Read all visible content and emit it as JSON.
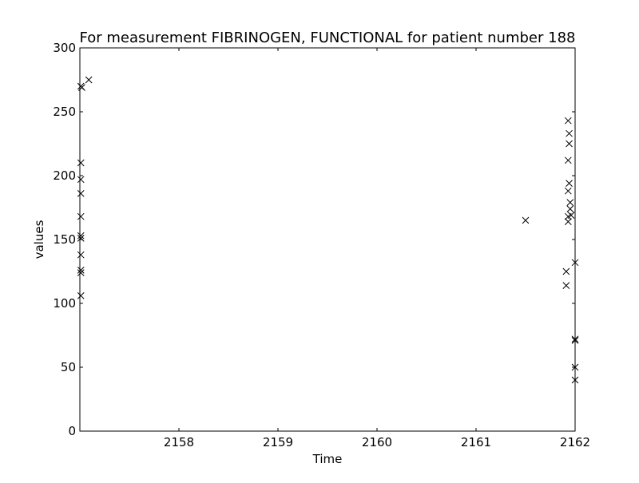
{
  "chart_data": {
    "type": "scatter",
    "title": "For measurement FIBRINOGEN, FUNCTIONAL for patient number 188",
    "xlabel": "Time",
    "ylabel": "values",
    "xlim": [
      2157.0,
      2162.0
    ],
    "ylim": [
      0,
      300
    ],
    "x_ticks": [
      2158,
      2159,
      2160,
      2161,
      2162
    ],
    "x_tick_labels": [
      "2158",
      "2159",
      "2160",
      "2161",
      "2162"
    ],
    "y_ticks": [
      0,
      50,
      100,
      150,
      200,
      250,
      300
    ],
    "y_tick_labels": [
      "0",
      "50",
      "100",
      "150",
      "200",
      "250",
      "300"
    ],
    "marker": "x",
    "marker_color": "#000000",
    "grid": false,
    "legend": "none",
    "points": [
      {
        "x": 2157.01,
        "y": 270
      },
      {
        "x": 2157.02,
        "y": 269
      },
      {
        "x": 2157.09,
        "y": 275
      },
      {
        "x": 2157.01,
        "y": 210
      },
      {
        "x": 2157.01,
        "y": 197
      },
      {
        "x": 2157.01,
        "y": 186
      },
      {
        "x": 2157.01,
        "y": 168
      },
      {
        "x": 2157.01,
        "y": 153
      },
      {
        "x": 2157.01,
        "y": 151
      },
      {
        "x": 2157.01,
        "y": 138
      },
      {
        "x": 2157.01,
        "y": 126
      },
      {
        "x": 2157.01,
        "y": 124
      },
      {
        "x": 2157.01,
        "y": 106
      },
      {
        "x": 2161.5,
        "y": 165
      },
      {
        "x": 2161.93,
        "y": 243
      },
      {
        "x": 2161.94,
        "y": 233
      },
      {
        "x": 2161.94,
        "y": 225
      },
      {
        "x": 2161.93,
        "y": 212
      },
      {
        "x": 2161.94,
        "y": 194
      },
      {
        "x": 2161.93,
        "y": 188
      },
      {
        "x": 2161.95,
        "y": 179
      },
      {
        "x": 2161.95,
        "y": 174
      },
      {
        "x": 2161.96,
        "y": 169
      },
      {
        "x": 2161.93,
        "y": 168
      },
      {
        "x": 2161.93,
        "y": 164
      },
      {
        "x": 2161.91,
        "y": 125
      },
      {
        "x": 2161.91,
        "y": 114
      },
      {
        "x": 2162.0,
        "y": 132
      },
      {
        "x": 2162.0,
        "y": 72
      },
      {
        "x": 2162.0,
        "y": 71
      },
      {
        "x": 2162.0,
        "y": 50
      },
      {
        "x": 2162.0,
        "y": 40
      }
    ]
  }
}
